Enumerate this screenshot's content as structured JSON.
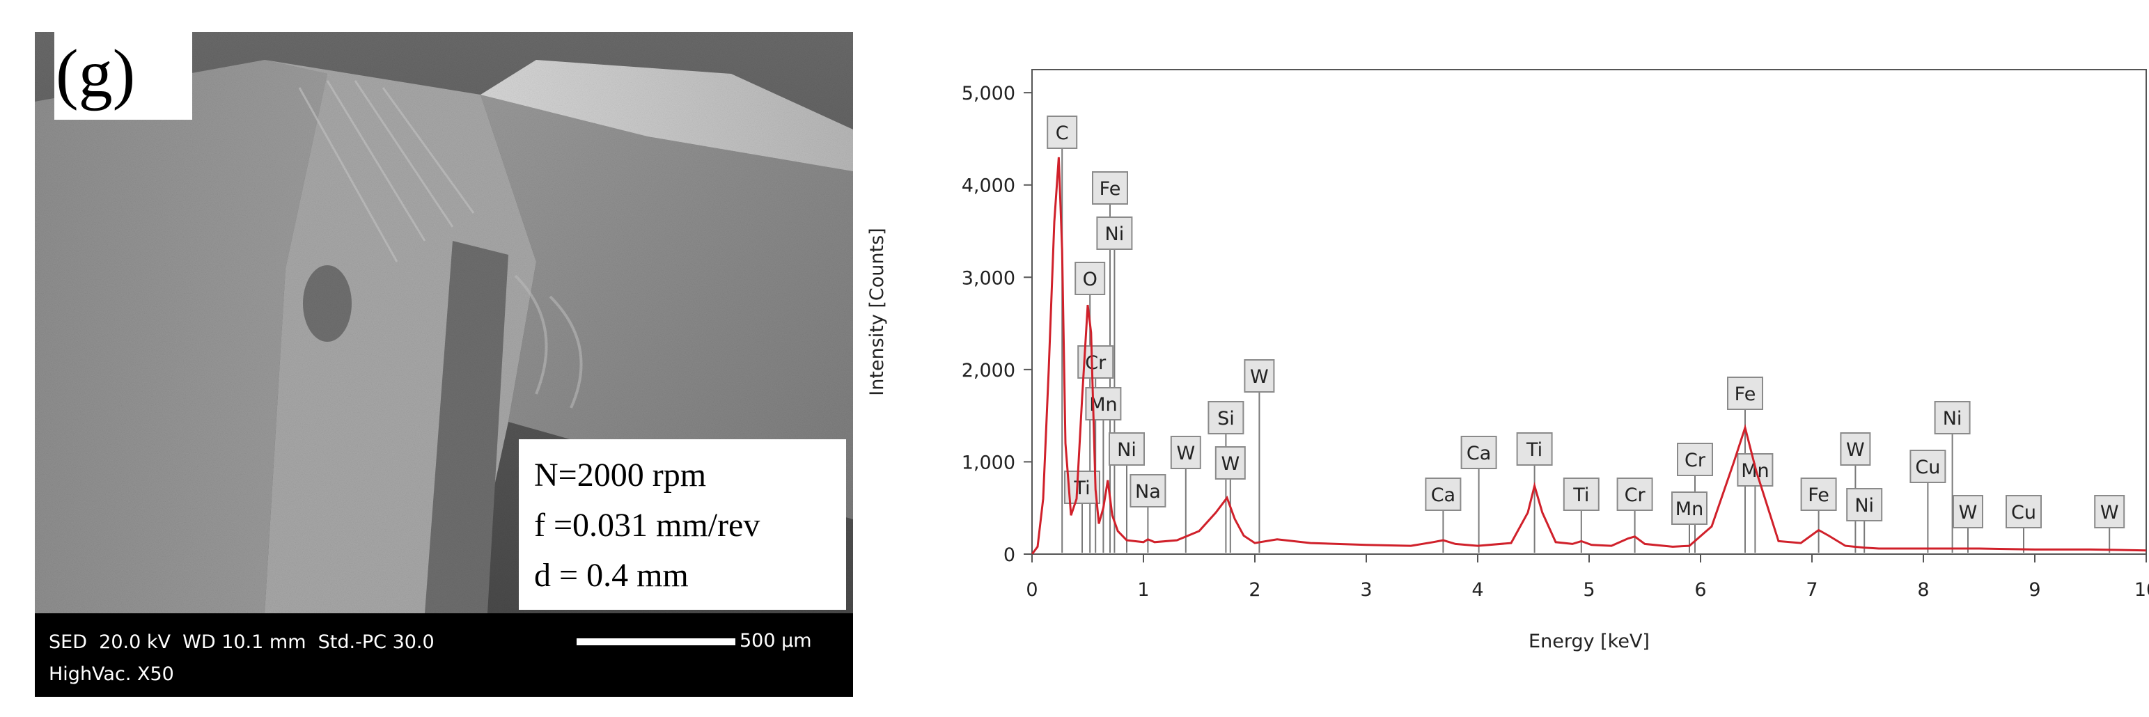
{
  "panel_label": "(g)",
  "sem": {
    "params": [
      "N=2000 rpm",
      "f =0.031 mm/rev",
      "d = 0.4 mm"
    ],
    "info_line1": "SED  20.0 kV  WD 10.1 mm  Std.-PC 30.0",
    "info_line2": "HighVac. X50",
    "scale_label": "500 µm"
  },
  "colors": {
    "spectrum": "#d0202a",
    "label_box": "#e4e4e4",
    "frame": "#555555"
  },
  "chart_data": {
    "type": "line",
    "xlabel": "Energy [keV]",
    "ylabel": "Intensity [Counts]",
    "xlim": [
      0,
      10
    ],
    "ylim": [
      0,
      5250
    ],
    "xticks": [
      0,
      1,
      2,
      3,
      4,
      5,
      6,
      7,
      8,
      9,
      10
    ],
    "yticks": [
      0,
      1000,
      2000,
      3000,
      4000,
      5000
    ],
    "ytick_labels": [
      "0",
      "1,000",
      "2,000",
      "3,000",
      "4,000",
      "5,000"
    ],
    "grid": false,
    "x": [
      0,
      0.05,
      0.1,
      0.15,
      0.2,
      0.24,
      0.27,
      0.3,
      0.35,
      0.4,
      0.45,
      0.5,
      0.53,
      0.57,
      0.6,
      0.64,
      0.68,
      0.72,
      0.77,
      0.85,
      1.0,
      1.04,
      1.1,
      1.3,
      1.5,
      1.65,
      1.75,
      1.82,
      1.9,
      2.0,
      2.2,
      2.5,
      3.0,
      3.4,
      3.6,
      3.69,
      3.8,
      4.0,
      4.3,
      4.45,
      4.51,
      4.58,
      4.7,
      4.85,
      4.93,
      5.02,
      5.2,
      5.35,
      5.41,
      5.5,
      5.75,
      5.9,
      6.1,
      6.3,
      6.4,
      6.5,
      6.7,
      6.9,
      7.06,
      7.15,
      7.3,
      7.47,
      7.6,
      8.0,
      8.5,
      9.0,
      9.5,
      10.0
    ],
    "y": [
      0,
      80,
      600,
      2000,
      3600,
      4300,
      3300,
      1200,
      420,
      600,
      1700,
      2700,
      2400,
      700,
      330,
      500,
      800,
      420,
      250,
      150,
      130,
      160,
      130,
      150,
      250,
      450,
      610,
      380,
      200,
      120,
      160,
      120,
      100,
      90,
      130,
      150,
      110,
      90,
      120,
      450,
      740,
      450,
      130,
      110,
      140,
      100,
      90,
      170,
      190,
      110,
      80,
      90,
      300,
      1000,
      1370,
      900,
      140,
      120,
      260,
      200,
      90,
      70,
      60,
      60,
      60,
      50,
      50,
      40
    ],
    "annotations": [
      {
        "label": "C",
        "x": 0.27
      },
      {
        "label": "Fe",
        "x": 0.7
      },
      {
        "label": "Ni",
        "x": 0.74
      },
      {
        "label": "O",
        "x": 0.52
      },
      {
        "label": "Cr",
        "x": 0.57
      },
      {
        "label": "Mn",
        "x": 0.64
      },
      {
        "label": "Ti",
        "x": 0.45
      },
      {
        "label": "Ni",
        "x": 0.85
      },
      {
        "label": "Na",
        "x": 1.04
      },
      {
        "label": "W",
        "x": 1.38
      },
      {
        "label": "Si",
        "x": 1.74
      },
      {
        "label": "W",
        "x": 1.78
      },
      {
        "label": "W",
        "x": 2.04
      },
      {
        "label": "Ca",
        "x": 3.69
      },
      {
        "label": "Ca",
        "x": 4.01
      },
      {
        "label": "Ti",
        "x": 4.51
      },
      {
        "label": "Ti",
        "x": 4.93
      },
      {
        "label": "Cr",
        "x": 5.41
      },
      {
        "label": "Cr",
        "x": 5.95
      },
      {
        "label": "Mn",
        "x": 5.9
      },
      {
        "label": "Fe",
        "x": 6.4
      },
      {
        "label": "Mn",
        "x": 6.49
      },
      {
        "label": "Fe",
        "x": 7.06
      },
      {
        "label": "W",
        "x": 7.39
      },
      {
        "label": "Ni",
        "x": 7.47
      },
      {
        "label": "Cu",
        "x": 8.04
      },
      {
        "label": "Ni",
        "x": 8.26
      },
      {
        "label": "W",
        "x": 8.4
      },
      {
        "label": "Cu",
        "x": 8.9
      },
      {
        "label": "W",
        "x": 9.67
      }
    ]
  }
}
